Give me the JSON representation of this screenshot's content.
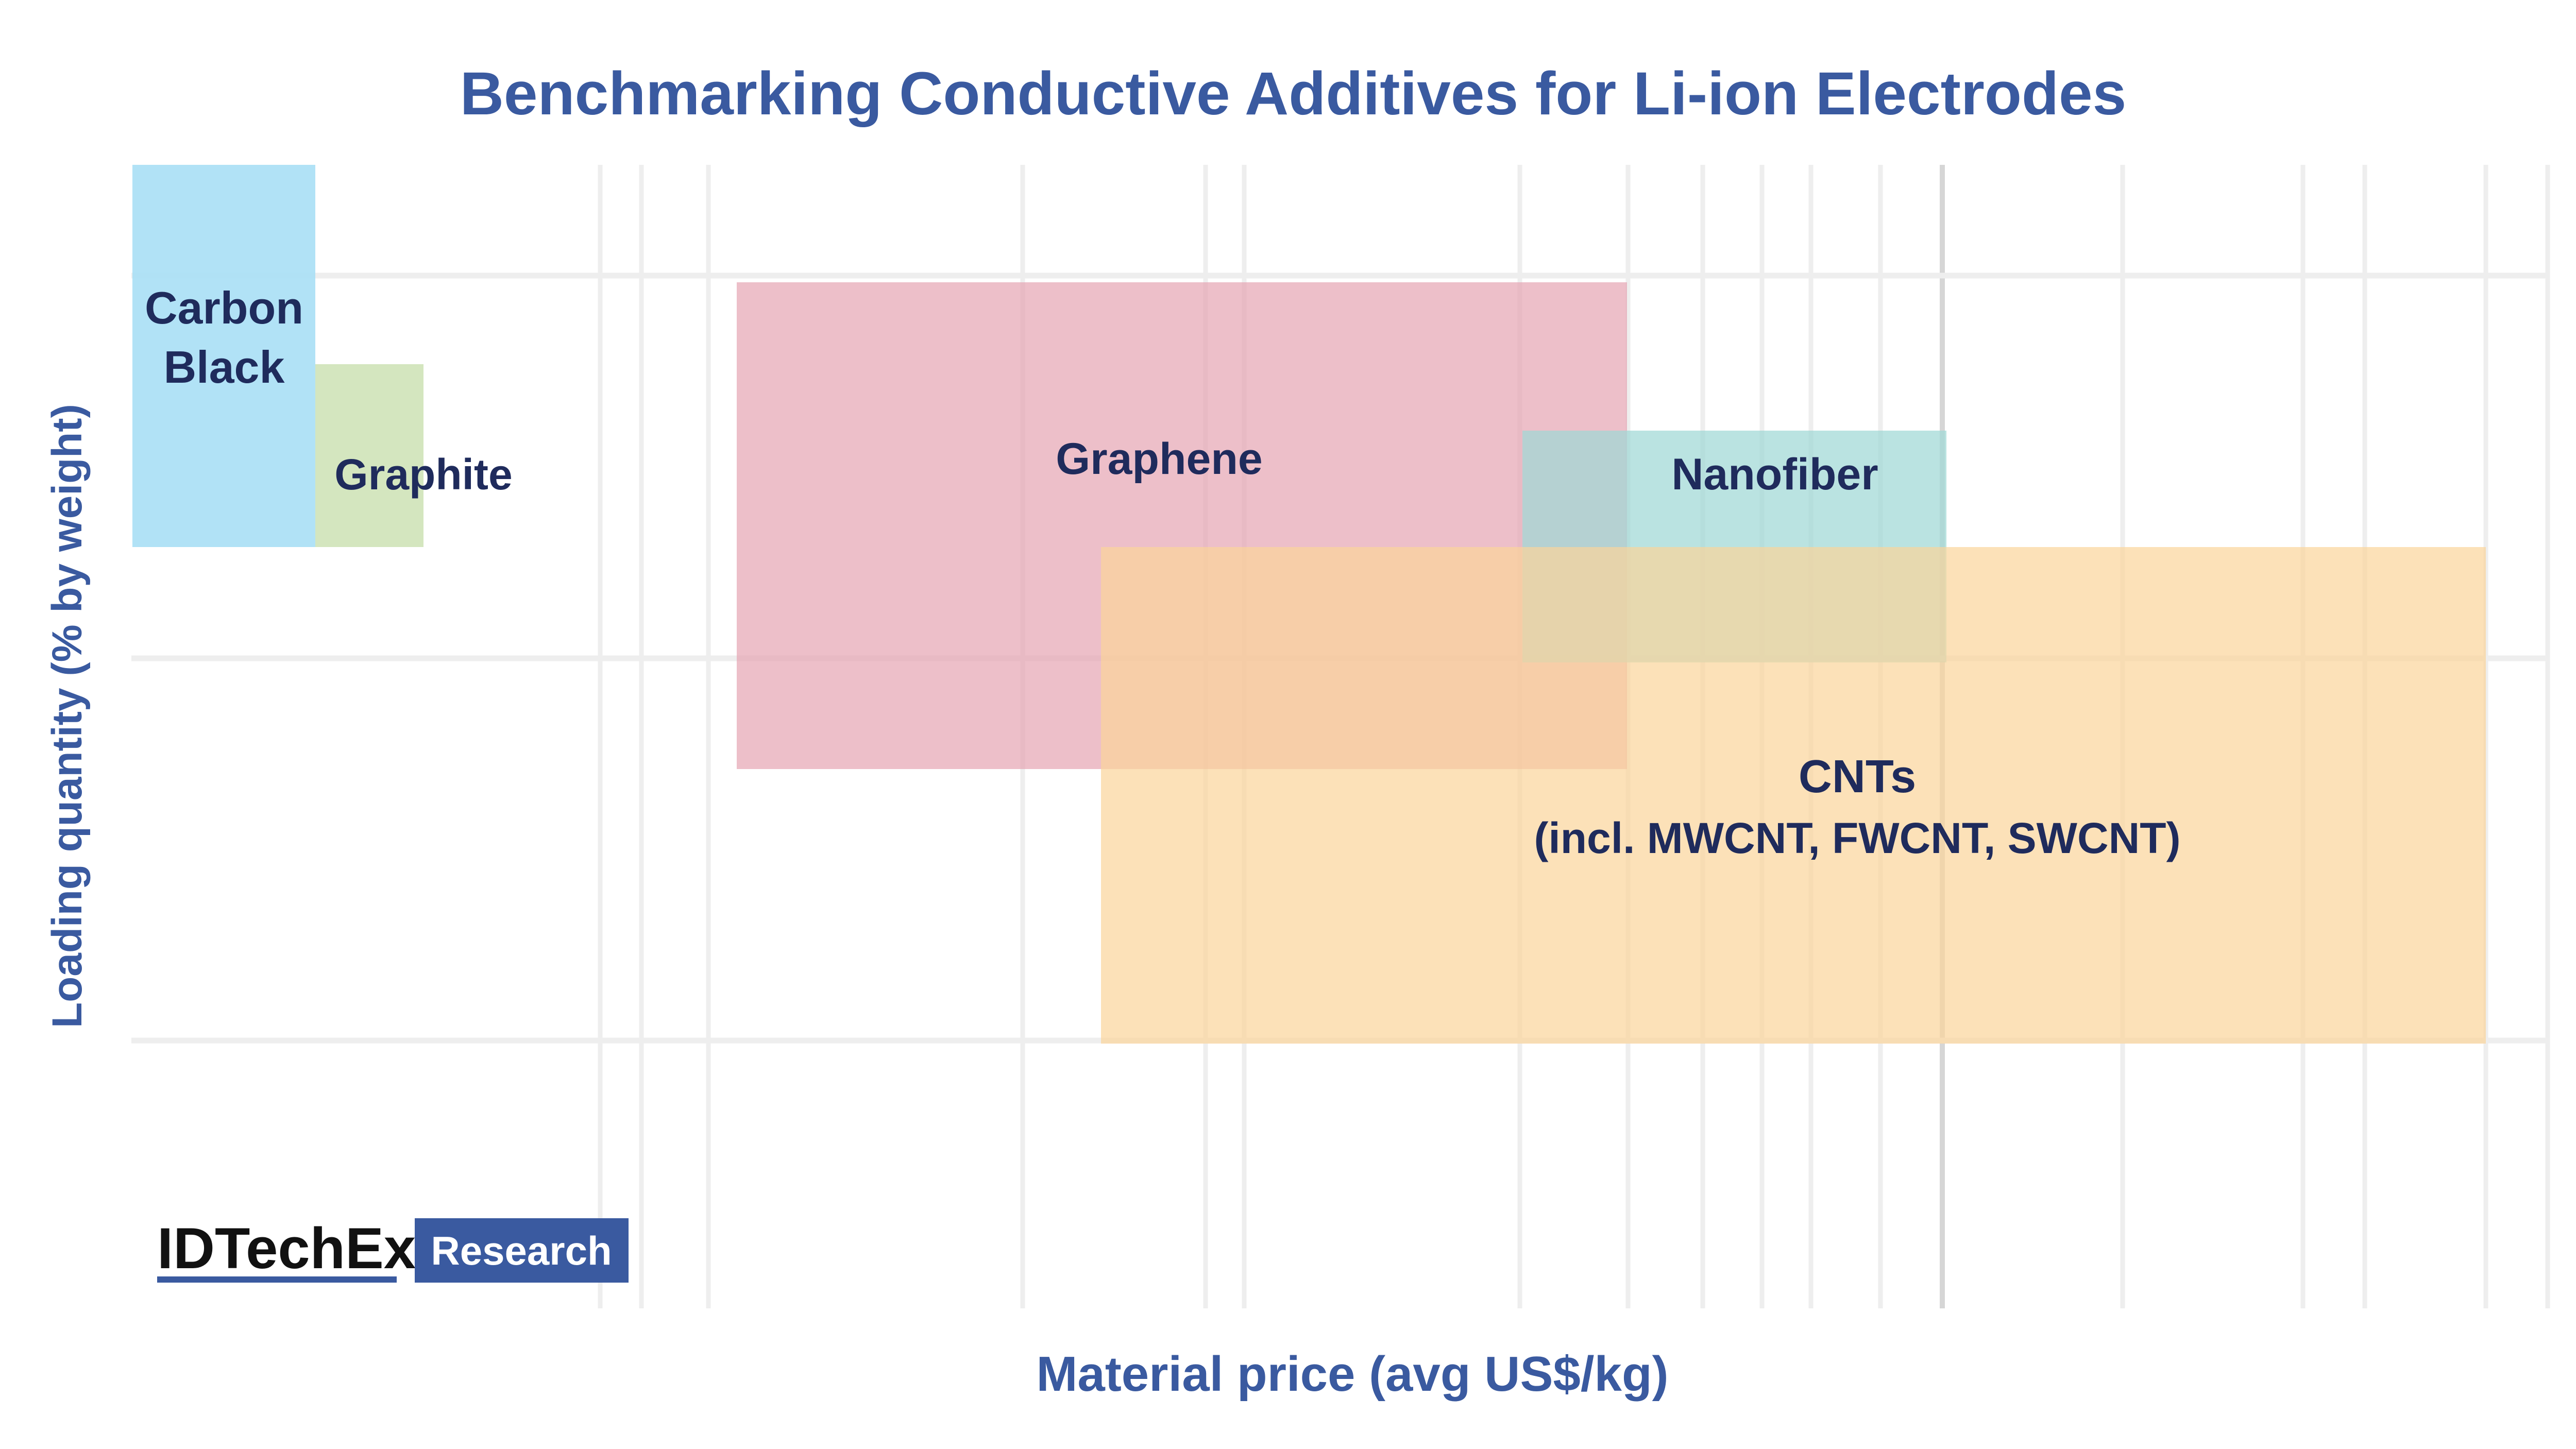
{
  "chart_data": {
    "type": "area",
    "title": "Benchmarking Conductive Additives for Li-ion Electrodes",
    "xlabel": "Material price (avg US$/kg)",
    "ylabel": "Loading quantity (% by weight)",
    "x_scale": "log",
    "grid": true,
    "regions": [
      {
        "name": "Carbon Black",
        "lines": [
          "Carbon",
          "Black"
        ],
        "color": "#a8dff5",
        "opacity": 0.9
      },
      {
        "name": "Graphite",
        "lines": [
          "Graphite"
        ],
        "color": "#cfe3b8",
        "opacity": 0.9
      },
      {
        "name": "Graphene",
        "lines": [
          "Graphene"
        ],
        "color": "#e6a6b4",
        "opacity": 0.72
      },
      {
        "name": "Nanofiber",
        "lines": [
          "Nanofiber"
        ],
        "color": "#9fd8d6",
        "opacity": 0.72
      },
      {
        "name": "CNTs",
        "lines": [
          "CNTs",
          "(incl. MWCNT, FWCNT, SWCNT)"
        ],
        "color": "#fbd49a",
        "opacity": 0.7
      }
    ]
  },
  "branding": {
    "logo_text": "IDTechEx",
    "badge_text": "Research",
    "badge_color": "#3a5aa0"
  },
  "colors": {
    "title": "#3a5aa0",
    "grid": "#eeeeee"
  }
}
